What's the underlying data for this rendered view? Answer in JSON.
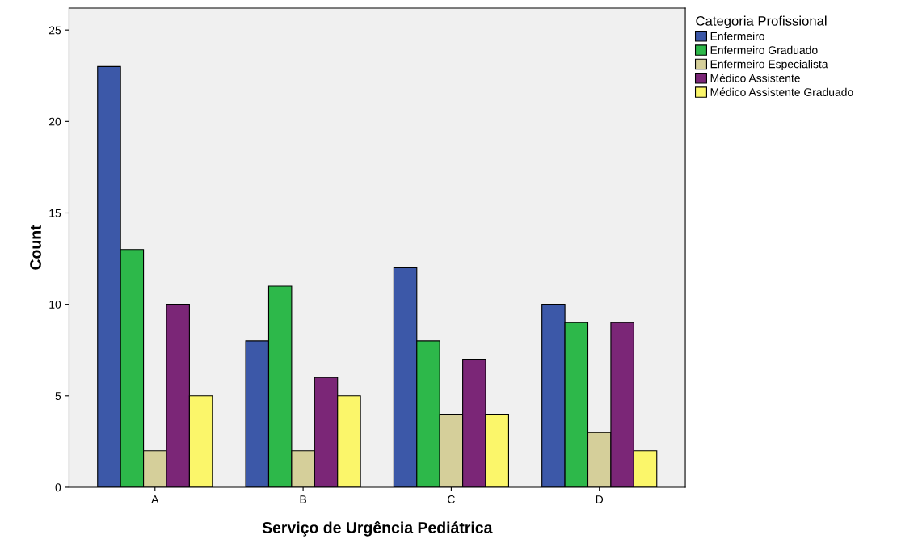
{
  "chart_data": {
    "type": "bar",
    "xlabel": "Serviço de Urgência Pediátrica",
    "ylabel": "Count",
    "legend_title": "Categoria Profissional",
    "categories": [
      "A",
      "B",
      "C",
      "D"
    ],
    "series": [
      {
        "name": "Enfermeiro",
        "color": "#3c58a8",
        "values": [
          23,
          8,
          12,
          10
        ]
      },
      {
        "name": "Enfermeiro Graduado",
        "color": "#2db84a",
        "values": [
          13,
          11,
          8,
          9
        ]
      },
      {
        "name": "Enfermeiro Especialista",
        "color": "#d5cf9a",
        "values": [
          2,
          2,
          4,
          3
        ]
      },
      {
        "name": "Médico Assistente",
        "color": "#7b2677",
        "values": [
          10,
          6,
          7,
          9
        ]
      },
      {
        "name": "Médico Assistente Graduado",
        "color": "#fbf66a",
        "values": [
          5,
          5,
          4,
          2
        ]
      }
    ],
    "ylim": [
      0,
      26.2
    ],
    "yticks": [
      0,
      5,
      10,
      15,
      20,
      25
    ],
    "grid": false,
    "legend": "top right"
  }
}
